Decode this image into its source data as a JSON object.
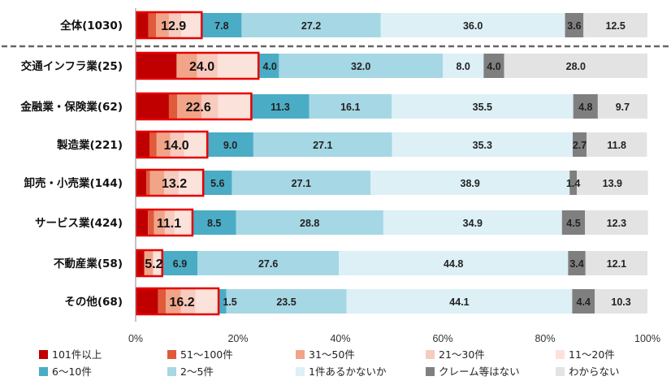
{
  "chart_data": {
    "type": "stacked-bar-horizontal",
    "xlim": [
      0,
      100
    ],
    "xticks": [
      "0%",
      "20%",
      "40%",
      "60%",
      "80%",
      "100%"
    ],
    "series": [
      {
        "name": "101件以上",
        "color": "#c00000"
      },
      {
        "name": "51～100件",
        "color": "#e05a3c"
      },
      {
        "name": "31～50件",
        "color": "#f2a488"
      },
      {
        "name": "21～30件",
        "color": "#f7cbbd"
      },
      {
        "name": "11～20件",
        "color": "#fbe2da"
      },
      {
        "name": "6～10件",
        "color": "#4bacc6"
      },
      {
        "name": "2～5件",
        "color": "#a6d7e4"
      },
      {
        "name": "1件あるかないか",
        "color": "#dcf0f6"
      },
      {
        "name": "クレーム等はない",
        "color": "#7f7f7f"
      },
      {
        "name": "わからない",
        "color": "#e3e3e3"
      }
    ],
    "rows": [
      {
        "label": "全体(1030)",
        "total_label": "12.9",
        "values": [
          2.5,
          1.5,
          2.5,
          2.4,
          4.0,
          7.8,
          27.2,
          36.0,
          3.6,
          12.5
        ],
        "shown": [
          "",
          "",
          "",
          "",
          "",
          "7.8",
          "27.2",
          "36.0",
          "3.6",
          "12.5"
        ]
      },
      {
        "label": "交通インフラ業(25)",
        "total_label": "24.0",
        "values": [
          8.0,
          0.0,
          4.0,
          4.0,
          8.0,
          4.0,
          32.0,
          8.0,
          4.0,
          28.0
        ],
        "shown": [
          "",
          "",
          "",
          "",
          "",
          "4.0",
          "32.0",
          "8.0",
          "4.0",
          "28.0"
        ]
      },
      {
        "label": "金融業・保険業(62)",
        "total_label": "22.6",
        "values": [
          6.5,
          1.6,
          4.8,
          3.2,
          6.5,
          11.3,
          16.1,
          35.5,
          4.8,
          9.7
        ],
        "shown": [
          "",
          "",
          "",
          "",
          "",
          "11.3",
          "16.1",
          "35.5",
          "4.8",
          "9.7"
        ]
      },
      {
        "label": "製造業(221)",
        "total_label": "14.0",
        "values": [
          2.7,
          1.4,
          2.7,
          2.7,
          4.5,
          9.0,
          27.1,
          35.3,
          2.7,
          11.8
        ],
        "shown": [
          "",
          "",
          "",
          "",
          "",
          "9.0",
          "27.1",
          "35.3",
          "2.7",
          "11.8"
        ]
      },
      {
        "label": "卸売・小売業(144)",
        "total_label": "13.2",
        "values": [
          2.1,
          0.7,
          2.8,
          2.8,
          4.8,
          5.6,
          27.1,
          38.9,
          1.4,
          13.9
        ],
        "shown": [
          "",
          "",
          "",
          "",
          "",
          "5.6",
          "27.1",
          "38.9",
          "1.4",
          "13.9"
        ]
      },
      {
        "label": "サービス業(424)",
        "total_label": "11.1",
        "values": [
          2.4,
          1.2,
          2.1,
          1.9,
          3.5,
          8.5,
          28.8,
          34.9,
          4.5,
          12.3
        ],
        "shown": [
          "",
          "",
          "",
          "",
          "",
          "8.5",
          "28.8",
          "34.9",
          "4.5",
          "12.3"
        ]
      },
      {
        "label": "不動産業(58)",
        "total_label": "5.2",
        "values": [
          1.7,
          0.0,
          1.7,
          0.0,
          1.8,
          6.9,
          27.6,
          44.8,
          3.4,
          12.1
        ],
        "shown": [
          "",
          "",
          "",
          "",
          "",
          "6.9",
          "27.6",
          "44.8",
          "3.4",
          "12.1"
        ]
      },
      {
        "label": "その他(68)",
        "total_label": "16.2",
        "values": [
          4.4,
          1.5,
          2.9,
          2.9,
          4.5,
          1.5,
          23.5,
          44.1,
          4.4,
          10.3
        ],
        "shown": [
          "",
          "",
          "",
          "",
          "",
          "1.5",
          "23.5",
          "44.1",
          "4.4",
          "10.3"
        ]
      }
    ]
  }
}
